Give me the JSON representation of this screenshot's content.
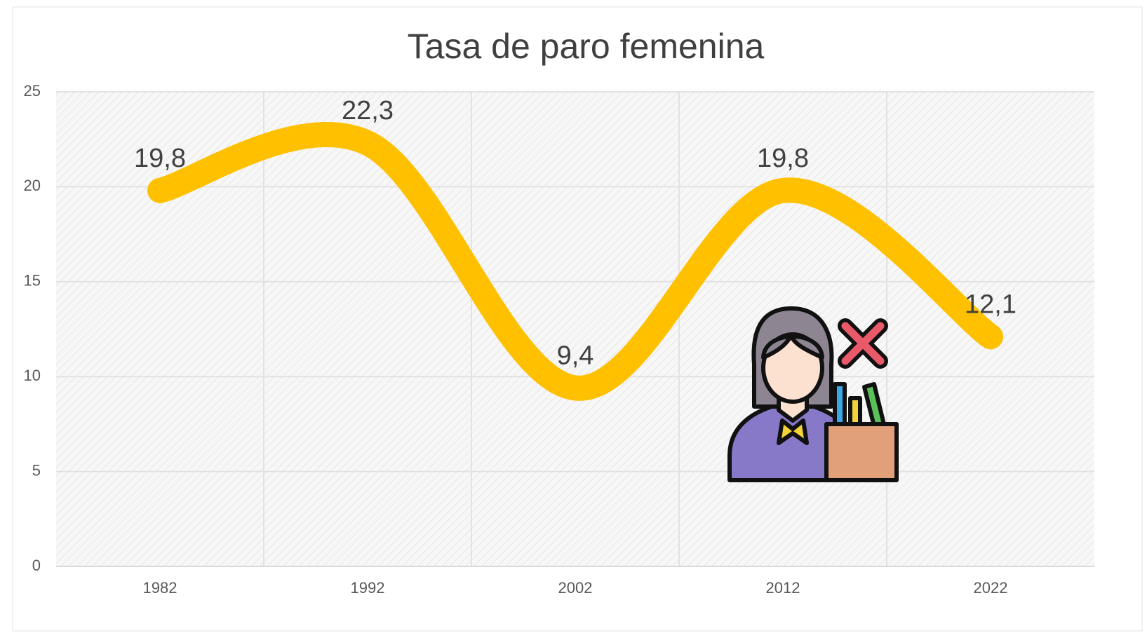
{
  "chart_data": {
    "type": "line",
    "title": "Tasa de paro femenina",
    "categories": [
      "1982",
      "1992",
      "2002",
      "2012",
      "2022"
    ],
    "values": [
      19.8,
      22.3,
      9.4,
      19.8,
      12.1
    ],
    "value_labels": [
      "19,8",
      "22,3",
      "9,4",
      "19,8",
      "12,1"
    ],
    "color": "#ffc000",
    "smooth": true,
    "ylim": [
      0,
      25
    ],
    "yticks": [
      0,
      5,
      10,
      15,
      20,
      25
    ],
    "grid": true
  }
}
